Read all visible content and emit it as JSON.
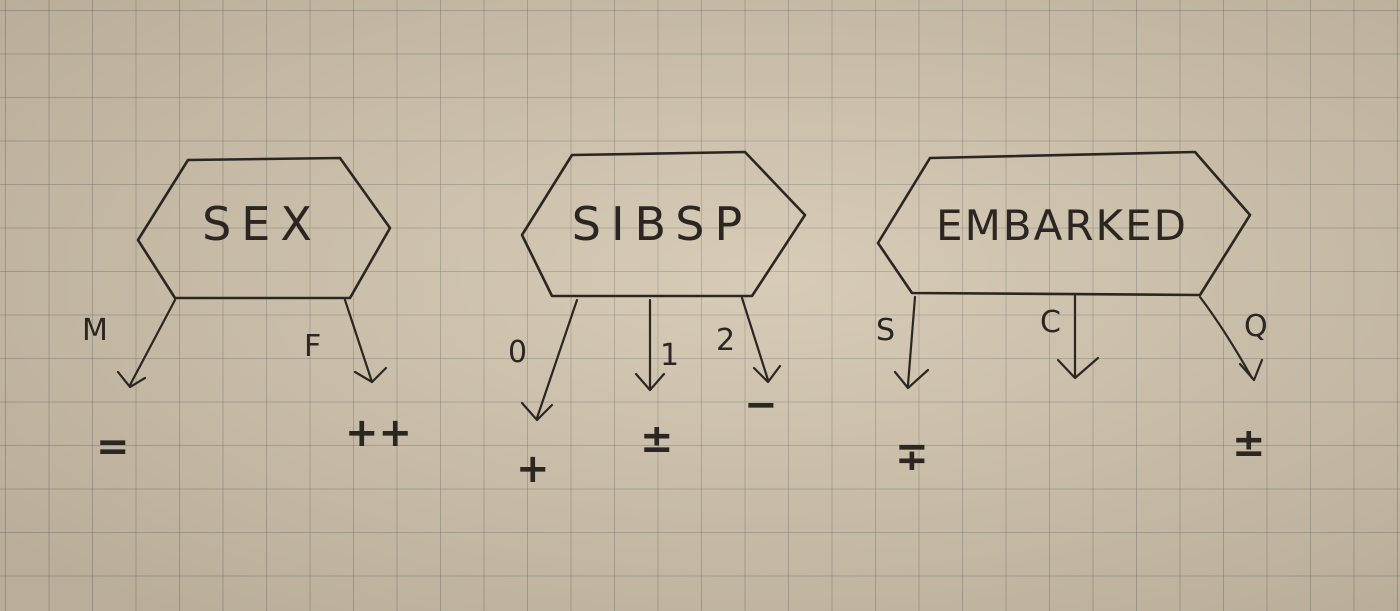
{
  "nodes": [
    {
      "id": "sex",
      "label": "SEX",
      "branches": [
        {
          "label": "M",
          "outcome": "="
        },
        {
          "label": "F",
          "outcome": "++"
        }
      ]
    },
    {
      "id": "sibsp",
      "label": "SIBSP",
      "branches": [
        {
          "label": "0",
          "outcome": "+"
        },
        {
          "label": "1",
          "outcome": "±"
        },
        {
          "label": "2",
          "outcome": "−"
        }
      ]
    },
    {
      "id": "embarked",
      "label": "EMBARKED",
      "branches": [
        {
          "label": "S",
          "outcome": "∓"
        },
        {
          "label": "C",
          "outcome": ""
        },
        {
          "label": "Q",
          "outcome": "±"
        }
      ]
    }
  ]
}
